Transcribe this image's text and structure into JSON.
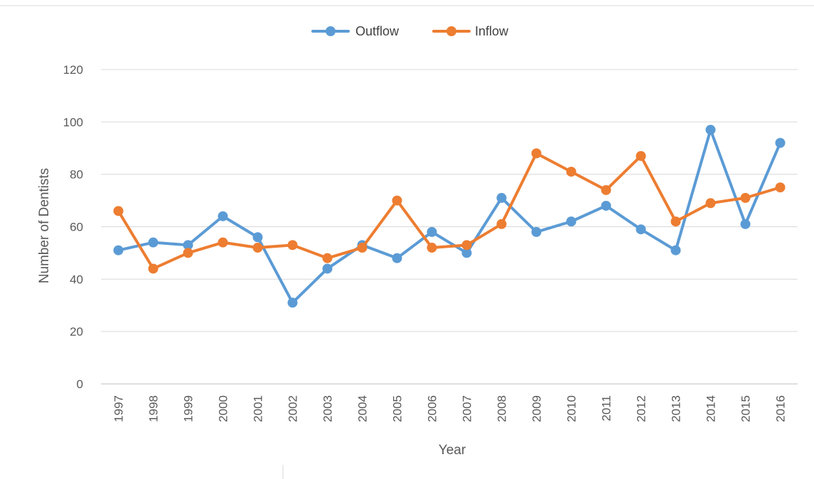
{
  "chart_data": {
    "type": "line",
    "categories": [
      "1997",
      "1998",
      "1999",
      "2000",
      "2001",
      "2002",
      "2003",
      "2004",
      "2005",
      "2006",
      "2007",
      "2008",
      "2009",
      "2010",
      "2011",
      "2012",
      "2013",
      "2014",
      "2015",
      "2016"
    ],
    "series": [
      {
        "name": "Outflow",
        "color": "#5B9BD5",
        "values": [
          51,
          54,
          53,
          64,
          56,
          31,
          44,
          53,
          48,
          58,
          50,
          71,
          58,
          62,
          68,
          59,
          51,
          97,
          61,
          92
        ]
      },
      {
        "name": "Inflow",
        "color": "#ED7D31",
        "values": [
          66,
          44,
          50,
          54,
          52,
          53,
          48,
          52,
          70,
          52,
          53,
          61,
          88,
          81,
          74,
          87,
          62,
          69,
          71,
          75
        ]
      }
    ],
    "title": "",
    "xlabel": "Year",
    "ylabel": "Number of Dentists",
    "ylim": [
      0,
      120
    ],
    "yticks": [
      "0",
      "20",
      "40",
      "60",
      "80",
      "100",
      "120"
    ],
    "grid": true,
    "legend_position": "top"
  }
}
